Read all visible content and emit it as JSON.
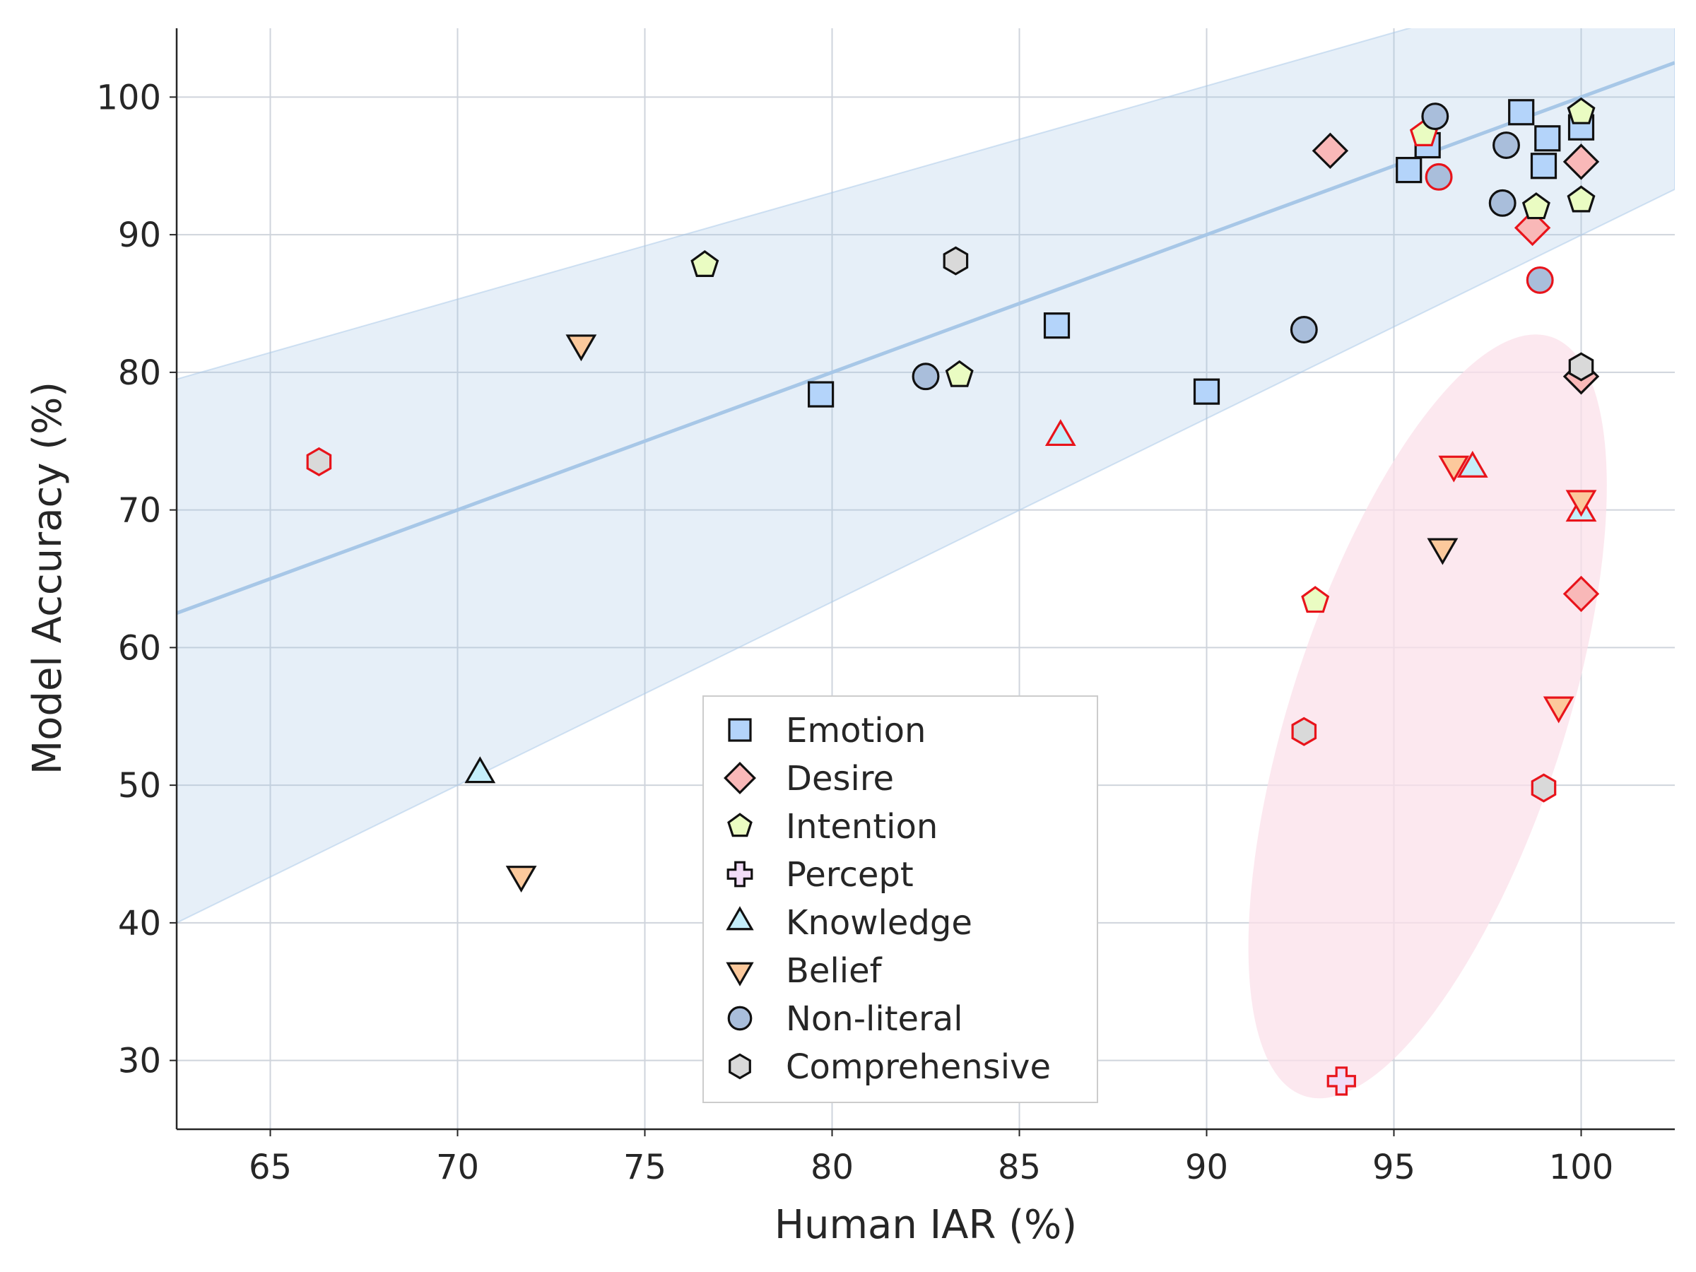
{
  "chart_data": {
    "type": "scatter",
    "xlabel": "Human IAR (%)",
    "ylabel": "Model Accuracy (%)",
    "xlim": [
      62.5,
      102.5
    ],
    "ylim": [
      25,
      105
    ],
    "xticks": [
      65,
      70,
      75,
      80,
      85,
      90,
      95,
      100
    ],
    "yticks": [
      30,
      40,
      50,
      60,
      70,
      80,
      90,
      100
    ],
    "grid": true,
    "legend_position": "lower-center",
    "fit_line": {
      "slope": 1.0,
      "intercept": 0.0,
      "band_upper_at_xmin": 79.5,
      "band_upper_at_xmax": 110.5,
      "band_lower_at_xmin": 40.0,
      "band_lower_at_xmax": 93.3,
      "color": "#a7c7e7"
    },
    "highlight_ellipse": {
      "center": [
        95.9,
        55.0
      ],
      "x_span": [
        92.3,
        99.6
      ],
      "y_span": [
        26.0,
        84.0
      ],
      "color": "#fbe0ea"
    },
    "series": [
      {
        "name": "Emotion",
        "marker": "square",
        "fill": "#b4d4fa",
        "points": [
          {
            "x": 79.7,
            "y": 78.4,
            "outlier": false
          },
          {
            "x": 86.0,
            "y": 83.4,
            "outlier": false
          },
          {
            "x": 90.0,
            "y": 78.6,
            "outlier": false
          },
          {
            "x": 95.4,
            "y": 94.7,
            "outlier": false
          },
          {
            "x": 95.9,
            "y": 96.5,
            "outlier": false
          },
          {
            "x": 98.4,
            "y": 98.9,
            "outlier": false
          },
          {
            "x": 99.1,
            "y": 97.0,
            "outlier": false
          },
          {
            "x": 99.0,
            "y": 95.0,
            "outlier": false
          },
          {
            "x": 100.0,
            "y": 97.8,
            "outlier": false
          }
        ]
      },
      {
        "name": "Desire",
        "marker": "diamond",
        "fill": "#f9b8b8",
        "points": [
          {
            "x": 93.3,
            "y": 96.1,
            "outlier": false
          },
          {
            "x": 98.7,
            "y": 90.5,
            "outlier": true
          },
          {
            "x": 100.0,
            "y": 95.3,
            "outlier": false
          },
          {
            "x": 100.0,
            "y": 79.7,
            "outlier": false
          },
          {
            "x": 100.0,
            "y": 63.9,
            "outlier": true
          }
        ]
      },
      {
        "name": "Intention",
        "marker": "pentagon",
        "fill": "#eafcc2",
        "points": [
          {
            "x": 76.6,
            "y": 87.8,
            "outlier": false
          },
          {
            "x": 83.4,
            "y": 79.8,
            "outlier": false
          },
          {
            "x": 95.8,
            "y": 97.3,
            "outlier": true
          },
          {
            "x": 98.8,
            "y": 92.0,
            "outlier": false
          },
          {
            "x": 100.0,
            "y": 92.5,
            "outlier": false
          },
          {
            "x": 100.0,
            "y": 98.9,
            "outlier": false
          },
          {
            "x": 92.9,
            "y": 63.4,
            "outlier": true
          }
        ]
      },
      {
        "name": "Percept",
        "marker": "plus",
        "fill": "#f2dcf7",
        "points": [
          {
            "x": 93.6,
            "y": 28.5,
            "outlier": true
          }
        ]
      },
      {
        "name": "Knowledge",
        "marker": "triangle-up",
        "fill": "#c4eefa",
        "points": [
          {
            "x": 70.6,
            "y": 50.8,
            "outlier": false
          },
          {
            "x": 86.1,
            "y": 75.3,
            "outlier": true
          },
          {
            "x": 97.1,
            "y": 73.0,
            "outlier": true
          },
          {
            "x": 100.0,
            "y": 69.8,
            "outlier": true
          }
        ]
      },
      {
        "name": "Belief",
        "marker": "triangle-down",
        "fill": "#fcc99c",
        "points": [
          {
            "x": 71.7,
            "y": 43.5,
            "outlier": false
          },
          {
            "x": 73.3,
            "y": 82.1,
            "outlier": false
          },
          {
            "x": 96.6,
            "y": 73.3,
            "outlier": true
          },
          {
            "x": 96.3,
            "y": 67.3,
            "outlier": false
          },
          {
            "x": 100.0,
            "y": 70.8,
            "outlier": true
          },
          {
            "x": 99.4,
            "y": 55.8,
            "outlier": true
          }
        ]
      },
      {
        "name": "Non-literal",
        "marker": "circle",
        "fill": "#a9bedb",
        "points": [
          {
            "x": 82.5,
            "y": 79.7,
            "outlier": false
          },
          {
            "x": 92.6,
            "y": 83.1,
            "outlier": false
          },
          {
            "x": 96.1,
            "y": 98.6,
            "outlier": false
          },
          {
            "x": 96.2,
            "y": 94.2,
            "outlier": true
          },
          {
            "x": 98.0,
            "y": 96.5,
            "outlier": false
          },
          {
            "x": 97.9,
            "y": 92.3,
            "outlier": false
          },
          {
            "x": 98.9,
            "y": 86.7,
            "outlier": true
          }
        ]
      },
      {
        "name": "Comprehensive",
        "marker": "hexagon",
        "fill": "#d9d9d9",
        "points": [
          {
            "x": 66.3,
            "y": 73.5,
            "outlier": true
          },
          {
            "x": 83.3,
            "y": 88.1,
            "outlier": false
          },
          {
            "x": 100.0,
            "y": 80.4,
            "outlier": false
          },
          {
            "x": 92.6,
            "y": 53.9,
            "outlier": true
          },
          {
            "x": 99.0,
            "y": 49.8,
            "outlier": true
          }
        ]
      }
    ]
  }
}
